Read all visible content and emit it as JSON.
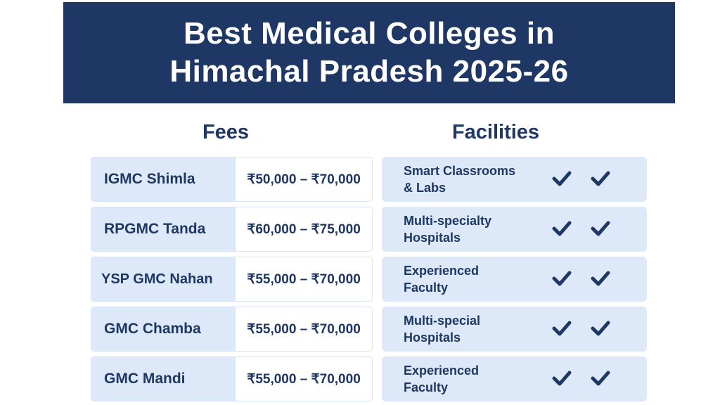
{
  "header": {
    "title_line1": "Best Medical Colleges in",
    "title_line2": "Himachal Pradesh 2025-26"
  },
  "fees": {
    "heading": "Fees",
    "rows": [
      {
        "college": "IGMC Shimla",
        "range": "₹50,000 – ₹70,000"
      },
      {
        "college": "RPGMC Tanda",
        "range": "₹60,000 – ₹75,000"
      },
      {
        "college": "YSP GMC Nahan",
        "range": "₹55,000 – ₹70,000"
      },
      {
        "college": "GMC Chamba",
        "range": "₹55,000 – ₹70,000"
      },
      {
        "college": "GMC Mandi",
        "range": "₹55,000 – ₹70,000"
      }
    ]
  },
  "facilities": {
    "heading": "Facilities",
    "rows": [
      {
        "line1": "Smart Classrooms",
        "line2": "& Labs",
        "icon": "checkmark-icon"
      },
      {
        "line1": "Multi-specialty",
        "line2": "Hospitals",
        "icon": "checkmark-icon"
      },
      {
        "line1": "Experienced",
        "line2": "Faculty",
        "icon": "checkmark-icon"
      },
      {
        "line1": "Multi-special",
        "line2": "Hospitals",
        "icon": "checkmark-icon"
      },
      {
        "line1": "Experienced",
        "line2": "Faculty",
        "icon": "checkmark-icon"
      }
    ]
  },
  "colors": {
    "navy": "#1f3764",
    "light_blue": "#dde9f8",
    "white": "#ffffff"
  }
}
